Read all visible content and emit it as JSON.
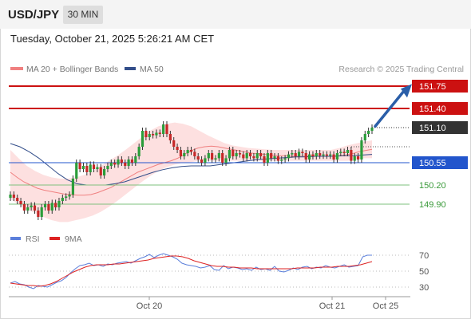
{
  "header": {
    "pair": "USD/JPY",
    "timeframe": "30 MIN",
    "datetime": "Tuesday, October 21, 2025 5:26:21 AM CET"
  },
  "legend": {
    "ma20": "MA 20 + Bollinger Bands",
    "ma50": "MA 50",
    "credit": "Research © 2025 Trading Central"
  },
  "rsi_legend": {
    "rsi": "RSI",
    "ma9": "9MA"
  },
  "colors": {
    "up": "#2a9d3a",
    "down": "#c62828",
    "resistance": "#cc1111",
    "support": "#2255cc",
    "target_green": "#3a9a3a",
    "arrow": "#2a5ea8",
    "ma20": "#f08080",
    "band": "#fde0e0",
    "ma50": "#334e8a",
    "rsi": "#5b7fdb",
    "rsi_ma": "#dd2222"
  },
  "chart_data": [
    {
      "type": "candlestick",
      "title": "USD/JPY",
      "timeframe": "30 MIN",
      "x_tick_labels": [
        "Oct 20",
        "Oct 21",
        "Oct 25"
      ],
      "ylim": [
        149.7,
        151.9
      ],
      "levels": [
        {
          "value": 151.75,
          "label": "151.75",
          "kind": "resistance"
        },
        {
          "value": 151.4,
          "label": "151.40",
          "kind": "resistance"
        },
        {
          "value": 151.1,
          "label": "151.10",
          "kind": "last-price"
        },
        {
          "value": 150.55,
          "label": "150.55",
          "kind": "pivot"
        },
        {
          "value": 150.2,
          "label": "150.20",
          "kind": "support"
        },
        {
          "value": 149.9,
          "label": "149.90",
          "kind": "support"
        }
      ],
      "closes": [
        150.05,
        150.0,
        149.95,
        149.9,
        149.8,
        149.85,
        149.88,
        149.8,
        149.7,
        149.85,
        149.9,
        149.8,
        149.92,
        149.85,
        149.95,
        150.0,
        150.02,
        150.05,
        150.3,
        150.55,
        150.45,
        150.5,
        150.4,
        150.52,
        150.45,
        150.48,
        150.35,
        150.45,
        150.5,
        150.55,
        150.52,
        150.6,
        150.55,
        150.5,
        150.6,
        150.55,
        150.65,
        150.8,
        151.05,
        150.95,
        151.0,
        150.98,
        151.02,
        151.0,
        151.15,
        151.0,
        150.9,
        150.8,
        150.75,
        150.65,
        150.7,
        150.75,
        150.72,
        150.65,
        150.6,
        150.55,
        150.62,
        150.7,
        150.6,
        150.62,
        150.7,
        150.55,
        150.62,
        150.75,
        150.65,
        150.7,
        150.68,
        150.62,
        150.7,
        150.65,
        150.62,
        150.7,
        150.65,
        150.55,
        150.7,
        150.62,
        150.65,
        150.58,
        150.6,
        150.62,
        150.68,
        150.7,
        150.65,
        150.72,
        150.7,
        150.6,
        150.68,
        150.65,
        150.7,
        150.66,
        150.68,
        150.66,
        150.68,
        150.6,
        150.7,
        150.72,
        150.7,
        150.75,
        150.58,
        150.65,
        150.6,
        150.9,
        151.0,
        151.05,
        151.1
      ],
      "ma20": [
        150.4,
        150.32,
        150.25,
        150.2,
        150.15,
        150.12,
        150.1,
        150.08,
        150.06,
        150.05,
        150.04,
        150.04,
        150.05,
        150.08,
        150.12,
        150.16,
        150.22,
        150.28,
        150.34,
        150.4,
        150.44,
        150.48,
        150.52,
        150.55,
        150.58,
        150.62,
        150.68,
        150.74,
        150.78,
        150.8,
        150.81,
        150.8,
        150.78,
        150.76,
        150.74,
        150.72,
        150.7,
        150.69,
        150.68,
        150.67,
        150.66,
        150.66,
        150.65,
        150.65,
        150.65,
        150.65,
        150.65,
        150.65,
        150.65,
        150.66,
        150.67,
        150.69,
        150.72,
        150.74,
        150.76
      ],
      "bb_upper": [
        150.75,
        150.62,
        150.5,
        150.42,
        150.36,
        150.32,
        150.3,
        150.3,
        150.32,
        150.36,
        150.42,
        150.5,
        150.58,
        150.66,
        150.75,
        150.85,
        150.95,
        151.05,
        151.12,
        151.16,
        151.18,
        151.16,
        151.12,
        151.05,
        150.98,
        150.92,
        150.86,
        150.82,
        150.8,
        150.78,
        150.77,
        150.76,
        150.75,
        150.75,
        150.75,
        150.75,
        150.75,
        150.75,
        150.75,
        150.75,
        150.78,
        150.82,
        150.85,
        150.88,
        150.9
      ],
      "bb_lower": [
        149.98,
        149.9,
        149.82,
        149.76,
        149.7,
        149.65,
        149.62,
        149.62,
        149.65,
        149.68,
        149.72,
        149.78,
        149.86,
        149.95,
        150.05,
        150.15,
        150.25,
        150.34,
        150.42,
        150.48,
        150.52,
        150.55,
        150.56,
        150.58,
        150.58,
        150.58,
        150.58,
        150.58,
        150.58,
        150.58,
        150.58,
        150.58,
        150.58,
        150.58,
        150.58,
        150.58,
        150.58,
        150.58,
        150.58,
        150.58,
        150.58,
        150.58,
        150.6,
        150.62,
        150.62
      ],
      "ma50": [
        150.85,
        150.8,
        150.72,
        150.62,
        150.5,
        150.38,
        150.28,
        150.22,
        150.2,
        150.2,
        150.2,
        150.22,
        150.25,
        150.3,
        150.35,
        150.4,
        150.44,
        150.47,
        150.49,
        150.5,
        150.5,
        150.5,
        150.52,
        150.54,
        150.56,
        150.58,
        150.6,
        150.61,
        150.62,
        150.63,
        150.64,
        150.64,
        150.65,
        150.65,
        150.65,
        150.66,
        150.66,
        150.67,
        150.68
      ]
    },
    {
      "type": "line",
      "title": "RSI",
      "ylim": [
        20,
        80
      ],
      "y_ticks": [
        30,
        50,
        70
      ],
      "series": [
        {
          "name": "RSI",
          "values": [
            35,
            37,
            34,
            33,
            30,
            28,
            32,
            31,
            30,
            33,
            36,
            38,
            42,
            48,
            53,
            57,
            58,
            60,
            57,
            58,
            56,
            59,
            58,
            60,
            61,
            62,
            60,
            63,
            66,
            68,
            71,
            67,
            70,
            72,
            70,
            68,
            65,
            60,
            58,
            57,
            56,
            54,
            55,
            57,
            52,
            51,
            57,
            53,
            55,
            54,
            52,
            53,
            51,
            55,
            52,
            53,
            51,
            56,
            50,
            49,
            51,
            54,
            52,
            55,
            56,
            53,
            55,
            54,
            57,
            55,
            54,
            56,
            58,
            55,
            56,
            57,
            68,
            70,
            70
          ]
        },
        {
          "name": "9MA",
          "values": [
            35,
            34,
            33,
            32,
            32,
            31,
            32,
            34,
            37,
            41,
            45,
            49,
            52,
            55,
            57,
            58,
            58,
            58,
            59,
            59,
            60,
            61,
            62,
            63,
            64,
            66,
            67,
            68,
            69,
            69,
            68,
            66,
            63,
            61,
            59,
            57,
            56,
            56,
            55,
            55,
            54,
            54,
            54,
            53,
            53,
            53,
            53,
            53,
            53,
            53,
            54,
            54,
            54,
            54,
            55,
            55,
            55,
            56,
            56,
            56,
            57,
            58,
            60,
            62
          ]
        }
      ]
    }
  ]
}
